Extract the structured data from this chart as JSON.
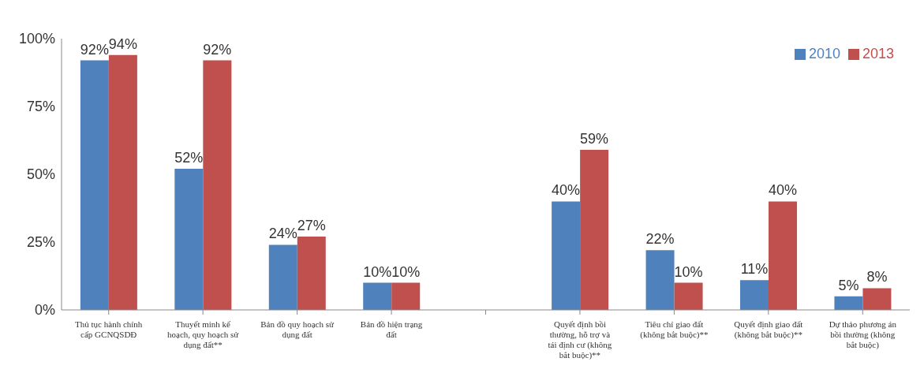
{
  "chart_data": {
    "type": "bar",
    "categories": [
      "Thủ tục hành chính cấp GCNQSDĐ",
      "Thuyết minh kế hoạch, quy hoạch sử dụng đất**",
      "Bản đồ quy hoạch sử dụng đất",
      "Bản đồ hiện trạng đất",
      null,
      "Quyết định bồi thường, hỗ trợ và tái định cư (không bắt buộc)**",
      "Tiêu chí giao đất (không bắt buộc)**",
      "Quyết định giao đất (không bắt buộc)**",
      "Dự thảo phương án bồi thường (không bắt buộc)"
    ],
    "series": [
      {
        "name": "2010",
        "color": "#4f81bd",
        "values": [
          92,
          52,
          24,
          10,
          null,
          40,
          22,
          11,
          5
        ],
        "value_labels": [
          "92%",
          "52%",
          "24%",
          "10%",
          null,
          "40%",
          "22%",
          "11%",
          "5%"
        ]
      },
      {
        "name": "2013",
        "color": "#c0504d",
        "values": [
          94,
          92,
          27,
          10,
          null,
          59,
          10,
          40,
          8
        ],
        "value_labels": [
          "94%",
          "92%",
          "27%",
          "10%",
          null,
          "59%",
          "10%",
          "40%",
          "8%"
        ]
      }
    ],
    "ylim": [
      0,
      100
    ],
    "yticks": [
      {
        "value": 0,
        "label": "0%"
      },
      {
        "value": 25,
        "label": "25%"
      },
      {
        "value": 50,
        "label": "50%"
      },
      {
        "value": 75,
        "label": "75%"
      },
      {
        "value": 100,
        "label": "100%"
      }
    ],
    "grid": false,
    "legend": "top right"
  }
}
